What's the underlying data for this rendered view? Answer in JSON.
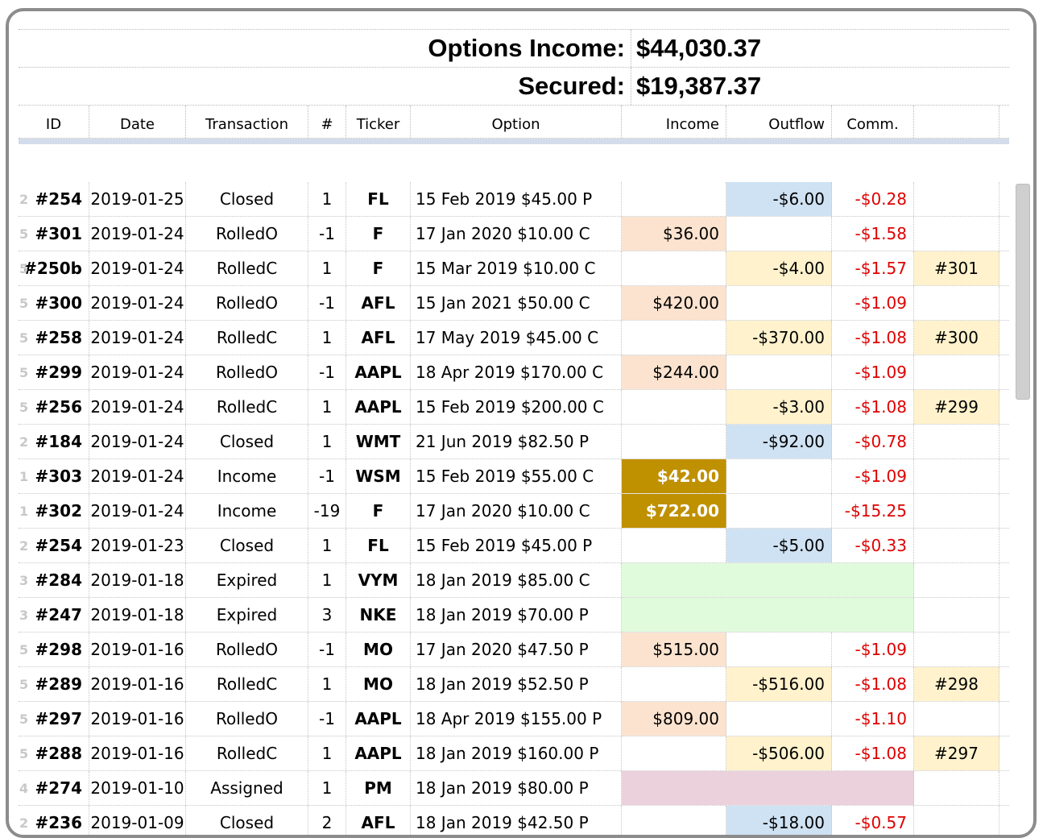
{
  "summary": {
    "options_income_label": "Options Income:",
    "options_income_value": "$44,030.37",
    "secured_label": "Secured:",
    "secured_value": "$19,387.37"
  },
  "columns": [
    "ID",
    "Date",
    "Transaction",
    "#",
    "Ticker",
    "Option",
    "Income",
    "Outflow",
    "Comm.",
    ""
  ],
  "rows": [
    {
      "rn": "2",
      "id": "#254",
      "date": "2019-01-25",
      "tx": "Closed",
      "num": "1",
      "ticker": "FL",
      "option": "15 Feb 2019 $45.00 P",
      "income": "",
      "outflow": "-$6.00",
      "comm": "-$0.28",
      "link": "",
      "inc_style": "",
      "out_style": "out",
      "span": ""
    },
    {
      "rn": "5",
      "id": "#301",
      "date": "2019-01-24",
      "tx": "RolledO",
      "num": "-1",
      "ticker": "F",
      "option": "17 Jan 2020 $10.00 C",
      "income": "$36.00",
      "outflow": "",
      "comm": "-$1.58",
      "link": "",
      "inc_style": "inc",
      "out_style": "",
      "span": ""
    },
    {
      "rn": "5",
      "id": "#250b",
      "date": "2019-01-24",
      "tx": "RolledC",
      "num": "1",
      "ticker": "F",
      "option": "15 Mar 2019 $10.00 C",
      "income": "",
      "outflow": "-$4.00",
      "comm": "-$1.57",
      "link": "#301",
      "inc_style": "",
      "out_style": "yel",
      "span": ""
    },
    {
      "rn": "5",
      "id": "#300",
      "date": "2019-01-24",
      "tx": "RolledO",
      "num": "-1",
      "ticker": "AFL",
      "option": "15 Jan 2021 $50.00 C",
      "income": "$420.00",
      "outflow": "",
      "comm": "-$1.09",
      "link": "",
      "inc_style": "inc",
      "out_style": "",
      "span": ""
    },
    {
      "rn": "5",
      "id": "#258",
      "date": "2019-01-24",
      "tx": "RolledC",
      "num": "1",
      "ticker": "AFL",
      "option": "17 May 2019 $45.00 C",
      "income": "",
      "outflow": "-$370.00",
      "comm": "-$1.08",
      "link": "#300",
      "inc_style": "",
      "out_style": "yel",
      "span": ""
    },
    {
      "rn": "5",
      "id": "#299",
      "date": "2019-01-24",
      "tx": "RolledO",
      "num": "-1",
      "ticker": "AAPL",
      "option": "18 Apr 2019 $170.00 C",
      "income": "$244.00",
      "outflow": "",
      "comm": "-$1.09",
      "link": "",
      "inc_style": "inc",
      "out_style": "",
      "span": ""
    },
    {
      "rn": "5",
      "id": "#256",
      "date": "2019-01-24",
      "tx": "RolledC",
      "num": "1",
      "ticker": "AAPL",
      "option": "15 Feb 2019 $200.00 C",
      "income": "",
      "outflow": "-$3.00",
      "comm": "-$1.08",
      "link": "#299",
      "inc_style": "",
      "out_style": "yel",
      "span": ""
    },
    {
      "rn": "2",
      "id": "#184",
      "date": "2019-01-24",
      "tx": "Closed",
      "num": "1",
      "ticker": "WMT",
      "option": "21 Jun 2019 $82.50 P",
      "income": "",
      "outflow": "-$92.00",
      "comm": "-$0.78",
      "link": "",
      "inc_style": "",
      "out_style": "out",
      "span": ""
    },
    {
      "rn": "1",
      "id": "#303",
      "date": "2019-01-24",
      "tx": "Income",
      "num": "-1",
      "ticker": "WSM",
      "option": "15 Feb 2019 $55.00 C",
      "income": "$42.00",
      "outflow": "",
      "comm": "-$1.09",
      "link": "",
      "inc_style": "gold",
      "out_style": "",
      "span": ""
    },
    {
      "rn": "1",
      "id": "#302",
      "date": "2019-01-24",
      "tx": "Income",
      "num": "-19",
      "ticker": "F",
      "option": "17 Jan 2020 $10.00 C",
      "income": "$722.00",
      "outflow": "",
      "comm": "-$15.25",
      "link": "",
      "inc_style": "gold",
      "out_style": "",
      "span": ""
    },
    {
      "rn": "2",
      "id": "#254",
      "date": "2019-01-23",
      "tx": "Closed",
      "num": "1",
      "ticker": "FL",
      "option": "15 Feb 2019 $45.00 P",
      "income": "",
      "outflow": "-$5.00",
      "comm": "-$0.33",
      "link": "",
      "inc_style": "",
      "out_style": "out",
      "span": ""
    },
    {
      "rn": "3",
      "id": "#284",
      "date": "2019-01-18",
      "tx": "Expired",
      "num": "1",
      "ticker": "VYM",
      "option": "18 Jan 2019 $85.00 C",
      "income": "",
      "outflow": "",
      "comm": "",
      "link": "",
      "inc_style": "",
      "out_style": "",
      "span": "grn"
    },
    {
      "rn": "3",
      "id": "#247",
      "date": "2019-01-18",
      "tx": "Expired",
      "num": "3",
      "ticker": "NKE",
      "option": "18 Jan 2019 $70.00 P",
      "income": "",
      "outflow": "",
      "comm": "",
      "link": "",
      "inc_style": "",
      "out_style": "",
      "span": "grn"
    },
    {
      "rn": "5",
      "id": "#298",
      "date": "2019-01-16",
      "tx": "RolledO",
      "num": "-1",
      "ticker": "MO",
      "option": "17 Jan 2020 $47.50 P",
      "income": "$515.00",
      "outflow": "",
      "comm": "-$1.09",
      "link": "",
      "inc_style": "inc",
      "out_style": "",
      "span": ""
    },
    {
      "rn": "5",
      "id": "#289",
      "date": "2019-01-16",
      "tx": "RolledC",
      "num": "1",
      "ticker": "MO",
      "option": "18 Jan 2019 $52.50 P",
      "income": "",
      "outflow": "-$516.00",
      "comm": "-$1.08",
      "link": "#298",
      "inc_style": "",
      "out_style": "yel",
      "span": ""
    },
    {
      "rn": "5",
      "id": "#297",
      "date": "2019-01-16",
      "tx": "RolledO",
      "num": "-1",
      "ticker": "AAPL",
      "option": "18 Apr 2019 $155.00 P",
      "income": "$809.00",
      "outflow": "",
      "comm": "-$1.10",
      "link": "",
      "inc_style": "inc",
      "out_style": "",
      "span": ""
    },
    {
      "rn": "5",
      "id": "#288",
      "date": "2019-01-16",
      "tx": "RolledC",
      "num": "1",
      "ticker": "AAPL",
      "option": "18 Jan 2019 $160.00 P",
      "income": "",
      "outflow": "-$506.00",
      "comm": "-$1.08",
      "link": "#297",
      "inc_style": "",
      "out_style": "yel",
      "span": ""
    },
    {
      "rn": "4",
      "id": "#274",
      "date": "2019-01-10",
      "tx": "Assigned",
      "num": "1",
      "ticker": "PM",
      "option": "18 Jan 2019 $80.00 P",
      "income": "",
      "outflow": "",
      "comm": "",
      "link": "",
      "inc_style": "",
      "out_style": "",
      "span": "pink"
    },
    {
      "rn": "2",
      "id": "#236",
      "date": "2019-01-09",
      "tx": "Closed",
      "num": "2",
      "ticker": "AFL",
      "option": "18 Jan 2019 $42.50 P",
      "income": "",
      "outflow": "-$18.00",
      "comm": "-$0.57",
      "link": "",
      "inc_style": "",
      "out_style": "out",
      "span": ""
    }
  ],
  "colors": {
    "income_fill": "#fbe3cf",
    "income_gold": "#bf9000",
    "outflow_blue": "#cfe2f3",
    "rolled_yellow": "#fff2cc",
    "expired_green": "#e0fbdc",
    "assigned_pink": "#ead1dc",
    "negative_red": "#e00000"
  }
}
